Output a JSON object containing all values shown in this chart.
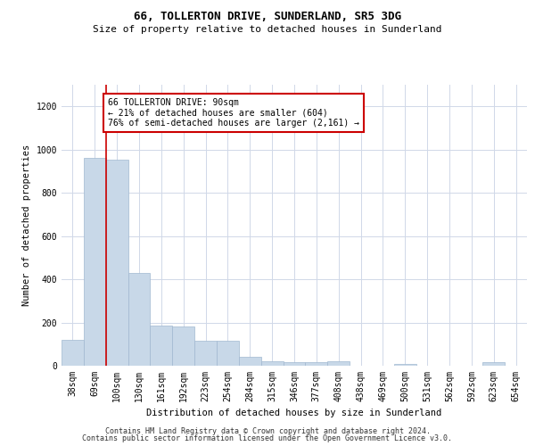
{
  "title": "66, TOLLERTON DRIVE, SUNDERLAND, SR5 3DG",
  "subtitle": "Size of property relative to detached houses in Sunderland",
  "xlabel": "Distribution of detached houses by size in Sunderland",
  "ylabel": "Number of detached properties",
  "bar_color": "#c8d8e8",
  "bar_edge_color": "#a0b8d0",
  "categories": [
    "38sqm",
    "69sqm",
    "100sqm",
    "130sqm",
    "161sqm",
    "192sqm",
    "223sqm",
    "254sqm",
    "284sqm",
    "315sqm",
    "346sqm",
    "377sqm",
    "408sqm",
    "438sqm",
    "469sqm",
    "500sqm",
    "531sqm",
    "562sqm",
    "592sqm",
    "623sqm",
    "654sqm"
  ],
  "values": [
    120,
    960,
    955,
    430,
    185,
    180,
    115,
    115,
    40,
    20,
    15,
    15,
    20,
    0,
    0,
    10,
    0,
    0,
    0,
    15,
    0
  ],
  "ylim": [
    0,
    1300
  ],
  "yticks": [
    0,
    200,
    400,
    600,
    800,
    1000,
    1200
  ],
  "property_line_x": 1.5,
  "annotation_text": "66 TOLLERTON DRIVE: 90sqm\n← 21% of detached houses are smaller (604)\n76% of semi-detached houses are larger (2,161) →",
  "annotation_box_color": "#ffffff",
  "annotation_box_edge_color": "#cc0000",
  "red_line_color": "#cc0000",
  "footer_line1": "Contains HM Land Registry data © Crown copyright and database right 2024.",
  "footer_line2": "Contains public sector information licensed under the Open Government Licence v3.0.",
  "title_fontsize": 9,
  "subtitle_fontsize": 8,
  "axis_label_fontsize": 7.5,
  "tick_fontsize": 7,
  "annotation_fontsize": 7,
  "footer_fontsize": 6
}
